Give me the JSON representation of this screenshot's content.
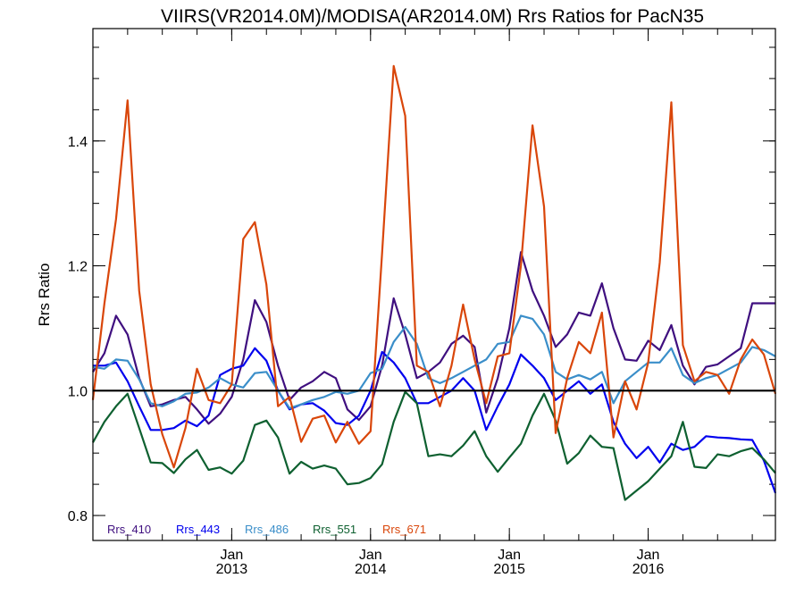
{
  "chart_data": {
    "type": "line",
    "title": "VIIRS(VR2014.0M)/MODISA(AR2014.0M)  Rrs Ratios for PacN35",
    "xlabel": "",
    "ylabel": "Rrs Ratio",
    "xlim": [
      "2012-01",
      "2016-12"
    ],
    "ylim": [
      0.76,
      1.58
    ],
    "yticks": [
      0.8,
      1.0,
      1.2,
      1.4
    ],
    "ytick_labels": [
      "0.8",
      "1.0",
      "1.2",
      "1.4"
    ],
    "xticks": [
      {
        "month": "2013-01",
        "line1": "Jan",
        "line2": "2013"
      },
      {
        "month": "2014-01",
        "line1": "Jan",
        "line2": "2014"
      },
      {
        "month": "2015-01",
        "line1": "Jan",
        "line2": "2015"
      },
      {
        "month": "2016-01",
        "line1": "Jan",
        "line2": "2016"
      }
    ],
    "reference_line": 1.0,
    "grid": false,
    "legend_position": "bottom-left",
    "x": [
      "2012-01",
      "2012-02",
      "2012-03",
      "2012-04",
      "2012-05",
      "2012-06",
      "2012-07",
      "2012-08",
      "2012-09",
      "2012-10",
      "2012-11",
      "2012-12",
      "2013-01",
      "2013-02",
      "2013-03",
      "2013-04",
      "2013-05",
      "2013-06",
      "2013-07",
      "2013-08",
      "2013-09",
      "2013-10",
      "2013-11",
      "2013-12",
      "2014-01",
      "2014-02",
      "2014-03",
      "2014-04",
      "2014-05",
      "2014-06",
      "2014-07",
      "2014-08",
      "2014-09",
      "2014-10",
      "2014-11",
      "2014-12",
      "2015-01",
      "2015-02",
      "2015-03",
      "2015-04",
      "2015-05",
      "2015-06",
      "2015-07",
      "2015-08",
      "2015-09",
      "2015-10",
      "2015-11",
      "2015-12",
      "2016-01",
      "2016-02",
      "2016-03",
      "2016-04",
      "2016-05",
      "2016-06",
      "2016-07",
      "2016-08",
      "2016-09",
      "2016-10",
      "2016-11",
      "2016-12"
    ],
    "series": [
      {
        "name": "Rrs_410",
        "color": "#3f0f7f",
        "values": [
          1.03,
          1.06,
          1.12,
          1.09,
          1.02,
          0.975,
          0.978,
          0.985,
          0.99,
          0.97,
          0.947,
          0.963,
          0.99,
          1.05,
          1.145,
          1.11,
          1.04,
          0.985,
          1.005,
          1.015,
          1.03,
          1.02,
          0.97,
          0.953,
          0.975,
          1.04,
          1.148,
          1.09,
          1.02,
          1.03,
          1.045,
          1.075,
          1.088,
          1.07,
          0.965,
          1.02,
          1.1,
          1.222,
          1.16,
          1.12,
          1.07,
          1.09,
          1.125,
          1.12,
          1.172,
          1.1,
          1.05,
          1.048,
          1.08,
          1.065,
          1.105,
          1.04,
          1.01,
          1.038,
          1.042,
          1.055,
          1.068,
          1.14,
          1.14,
          1.14
        ]
      },
      {
        "name": "Rrs_443",
        "color": "#0000ee",
        "values": [
          1.04,
          1.04,
          1.045,
          1.015,
          0.975,
          0.937,
          0.937,
          0.94,
          0.952,
          0.943,
          0.96,
          1.025,
          1.035,
          1.04,
          1.068,
          1.048,
          1.0,
          0.97,
          0.978,
          0.98,
          0.968,
          0.948,
          0.945,
          0.96,
          1.0,
          1.062,
          1.045,
          1.02,
          0.98,
          0.98,
          0.99,
          1.0,
          1.02,
          1.0,
          0.937,
          0.975,
          1.01,
          1.058,
          1.04,
          1.02,
          0.985,
          1.0,
          1.015,
          0.995,
          1.01,
          0.95,
          0.915,
          0.892,
          0.91,
          0.885,
          0.915,
          0.905,
          0.91,
          0.927,
          0.925,
          0.924,
          0.922,
          0.921,
          0.888,
          0.836
        ]
      },
      {
        "name": "Rrs_486",
        "color": "#3a8ec9",
        "values": [
          1.038,
          1.035,
          1.05,
          1.048,
          1.018,
          0.98,
          0.975,
          0.983,
          0.995,
          0.997,
          1.005,
          1.02,
          1.01,
          1.005,
          1.028,
          1.03,
          1.0,
          0.972,
          0.978,
          0.985,
          0.99,
          0.998,
          0.995,
          1.0,
          1.028,
          1.035,
          1.078,
          1.102,
          1.075,
          1.02,
          1.012,
          1.02,
          1.03,
          1.04,
          1.05,
          1.075,
          1.078,
          1.12,
          1.115,
          1.09,
          1.03,
          1.018,
          1.025,
          1.018,
          1.03,
          0.98,
          1.015,
          1.03,
          1.045,
          1.045,
          1.068,
          1.025,
          1.012,
          1.02,
          1.025,
          1.035,
          1.045,
          1.07,
          1.065,
          1.055
        ]
      },
      {
        "name": "Rrs_551",
        "color": "#0e6030",
        "values": [
          0.917,
          0.95,
          0.975,
          0.995,
          0.94,
          0.885,
          0.884,
          0.868,
          0.89,
          0.905,
          0.873,
          0.877,
          0.867,
          0.888,
          0.945,
          0.952,
          0.925,
          0.867,
          0.886,
          0.875,
          0.88,
          0.875,
          0.85,
          0.852,
          0.86,
          0.882,
          0.95,
          0.998,
          0.98,
          0.895,
          0.898,
          0.895,
          0.912,
          0.935,
          0.895,
          0.87,
          0.893,
          0.915,
          0.96,
          0.995,
          0.952,
          0.883,
          0.9,
          0.928,
          0.91,
          0.908,
          0.825,
          0.84,
          0.855,
          0.875,
          0.895,
          0.95,
          0.878,
          0.876,
          0.898,
          0.895,
          0.903,
          0.908,
          0.89,
          0.868
        ]
      },
      {
        "name": "Rrs_671",
        "color": "#d9460a",
        "values": [
          0.985,
          1.14,
          1.275,
          1.465,
          1.16,
          1.01,
          0.93,
          0.877,
          0.94,
          1.035,
          0.985,
          0.98,
          1.01,
          1.243,
          1.27,
          1.17,
          0.975,
          0.99,
          0.918,
          0.955,
          0.96,
          0.917,
          0.95,
          0.915,
          0.935,
          1.22,
          1.52,
          1.44,
          1.04,
          1.03,
          0.975,
          1.04,
          1.138,
          1.05,
          0.98,
          1.055,
          1.06,
          1.2,
          1.425,
          1.295,
          0.932,
          1.02,
          1.078,
          1.06,
          1.125,
          0.925,
          1.015,
          0.97,
          1.045,
          1.205,
          1.462,
          1.073,
          1.015,
          1.03,
          1.025,
          0.995,
          1.05,
          1.082,
          1.058,
          0.995
        ]
      }
    ]
  }
}
